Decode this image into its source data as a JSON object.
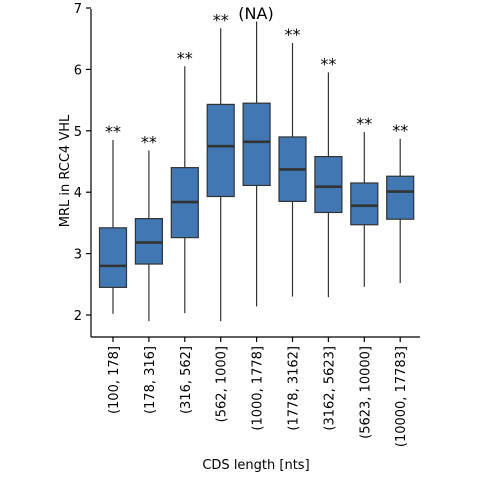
{
  "chart_data": {
    "type": "boxplot",
    "title": "(NA)",
    "xlabel": "CDS length [nts]",
    "ylabel": "MRL in RCC4 VHL",
    "ylim": [
      1.65,
      7.0
    ],
    "yticks": [
      2,
      3,
      4,
      5,
      6,
      7
    ],
    "grid": false,
    "legend": "none",
    "box_color": "#4178b4",
    "categories": [
      "(100, 178]",
      "(178, 316]",
      "(316, 562]",
      "(562, 1000]",
      "(1000, 1778]",
      "(1778, 3162]",
      "(3162, 5623]",
      "(5623, 10000]",
      "(10000, 17783]"
    ],
    "boxes": [
      {
        "whisker_low": 2.02,
        "q1": 2.45,
        "median": 2.8,
        "q3": 3.42,
        "whisker_high": 4.85,
        "sig": "**"
      },
      {
        "whisker_low": 1.9,
        "q1": 2.83,
        "median": 3.18,
        "q3": 3.57,
        "whisker_high": 4.68,
        "sig": "**"
      },
      {
        "whisker_low": 2.03,
        "q1": 3.26,
        "median": 3.84,
        "q3": 4.4,
        "whisker_high": 6.05,
        "sig": "**"
      },
      {
        "whisker_low": 1.9,
        "q1": 3.93,
        "median": 4.75,
        "q3": 5.43,
        "whisker_high": 6.67,
        "sig": "**"
      },
      {
        "whisker_low": 2.14,
        "q1": 4.11,
        "median": 4.82,
        "q3": 5.45,
        "whisker_high": 6.78,
        "sig": ""
      },
      {
        "whisker_low": 2.3,
        "q1": 3.85,
        "median": 4.37,
        "q3": 4.9,
        "whisker_high": 6.43,
        "sig": "**"
      },
      {
        "whisker_low": 2.29,
        "q1": 3.67,
        "median": 4.09,
        "q3": 4.58,
        "whisker_high": 5.95,
        "sig": "**"
      },
      {
        "whisker_low": 2.46,
        "q1": 3.47,
        "median": 3.78,
        "q3": 4.15,
        "whisker_high": 4.98,
        "sig": "**"
      },
      {
        "whisker_low": 2.52,
        "q1": 3.56,
        "median": 4.01,
        "q3": 4.26,
        "whisker_high": 4.87,
        "sig": "**"
      }
    ]
  }
}
